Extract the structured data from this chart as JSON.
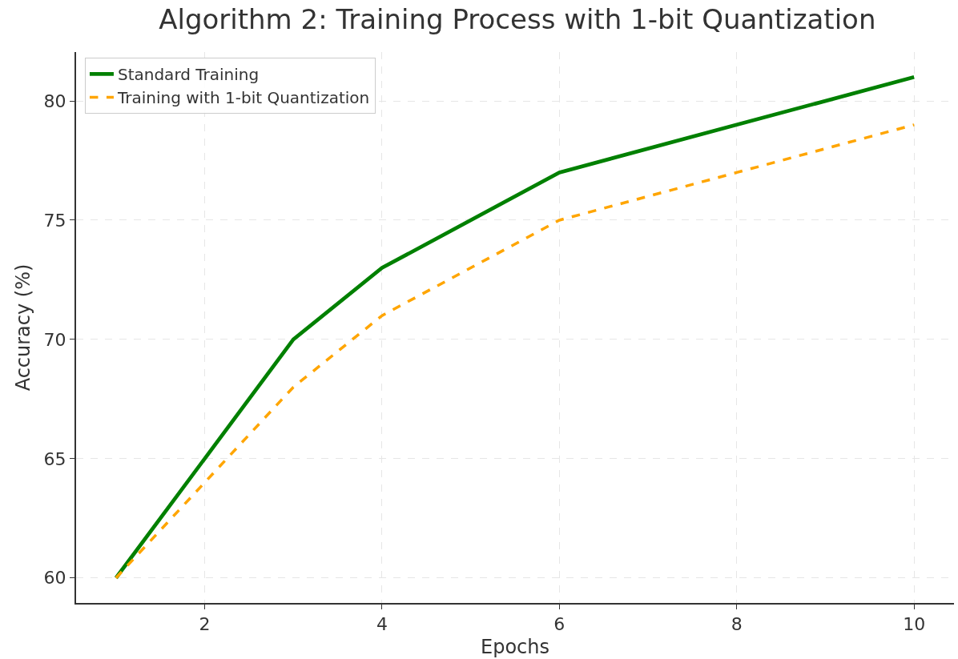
{
  "chart_data": {
    "type": "line",
    "title": "Algorithm 2: Training Process with 1-bit Quantization",
    "xlabel": "Epochs",
    "ylabel": "Accuracy (%)",
    "x": [
      1,
      2,
      3,
      4,
      6,
      8,
      10
    ],
    "series": [
      {
        "name": "Standard Training",
        "color": "#008000",
        "line_style": "solid",
        "values": [
          60,
          65,
          70,
          73,
          77,
          79,
          81
        ]
      },
      {
        "name": "Training with 1-bit Quantization",
        "color": "#ffa500",
        "line_style": "dashed",
        "values": [
          60,
          64,
          68,
          71,
          75,
          77,
          79
        ]
      }
    ],
    "xlim": [
      0.55,
      10.45
    ],
    "xticks": [
      2,
      4,
      6,
      8,
      10
    ],
    "ylim": [
      58.95,
      82.05
    ],
    "yticks": [
      60,
      65,
      70,
      75,
      80
    ],
    "grid": true,
    "legend": "top left",
    "marker": "none"
  }
}
